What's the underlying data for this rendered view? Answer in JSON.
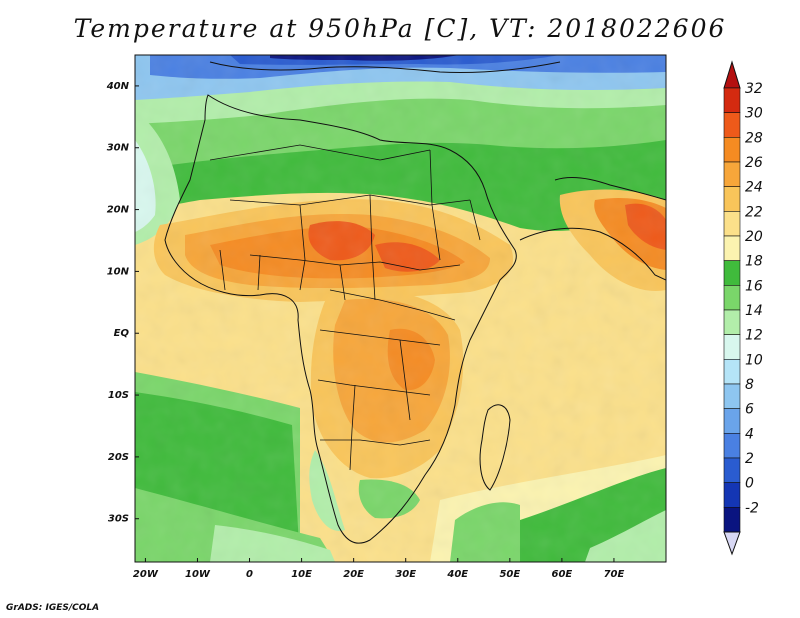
{
  "title": "Temperature at 950hPa [C], VT: 2018022606",
  "credit": "GrADS: IGES/COLA",
  "map": {
    "projection": "lat-lon",
    "lon_range": [
      -22,
      80
    ],
    "lat_range": [
      -37,
      45
    ],
    "lon_ticks": [
      "20W",
      "10W",
      "0",
      "10E",
      "20E",
      "30E",
      "40E",
      "50E",
      "60E",
      "70E"
    ],
    "lat_ticks": [
      "40N",
      "30N",
      "20N",
      "10N",
      "EQ",
      "10S",
      "20S",
      "30S"
    ]
  },
  "colorbar": {
    "labels": [
      "32",
      "30",
      "28",
      "26",
      "24",
      "22",
      "20",
      "18",
      "16",
      "14",
      "12",
      "10",
      "8",
      "6",
      "4",
      "2",
      "0",
      "-2"
    ],
    "colors": [
      "#d42a10",
      "#ee5a1a",
      "#f58b22",
      "#f7a63a",
      "#f9c55a",
      "#fbe08a",
      "#fbf3b0",
      "#40bb3c",
      "#7ad66a",
      "#b2eeaa",
      "#d8f7ee",
      "#b5e4f7",
      "#8ec6f0",
      "#6aa4ea",
      "#4a80e2",
      "#2a5cd0",
      "#1436b4",
      "#0a1480"
    ],
    "top_arrow_color": "#b41010",
    "bottom_arrow_color": "#d8d8f4"
  }
}
